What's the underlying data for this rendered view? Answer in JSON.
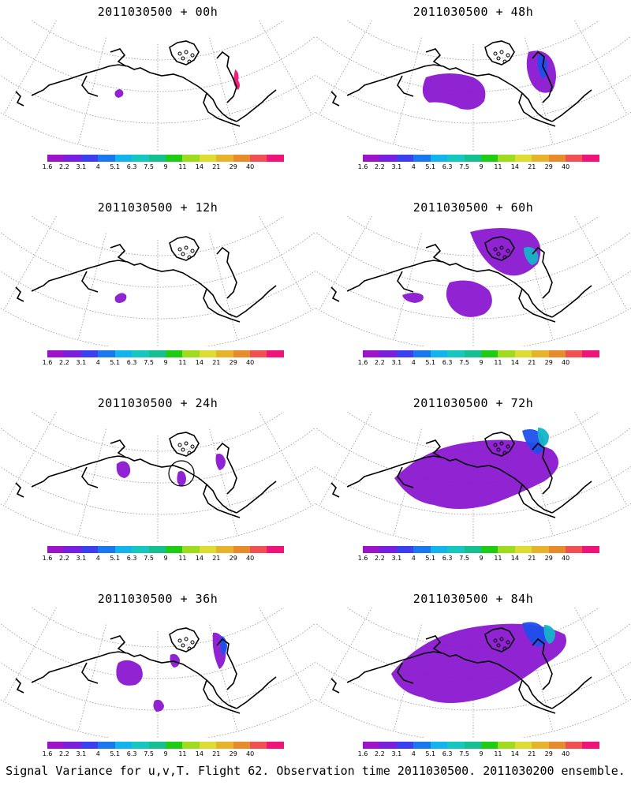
{
  "panels": [
    {
      "title": "2011030500 + 00h"
    },
    {
      "title": "2011030500 + 48h"
    },
    {
      "title": "2011030500 + 12h"
    },
    {
      "title": "2011030500 + 60h"
    },
    {
      "title": "2011030500 + 24h"
    },
    {
      "title": "2011030500 + 72h"
    },
    {
      "title": "2011030500 + 36h"
    },
    {
      "title": "2011030500 + 84h"
    }
  ],
  "colorbar": {
    "labels": [
      "1.6",
      "2.2",
      "3.1",
      "4",
      "5.1",
      "6.3",
      "7.5",
      "9",
      "11",
      "14",
      "21",
      "29",
      "40"
    ],
    "colors": [
      "#9a14c8",
      "#7a1ee0",
      "#3a40f0",
      "#1878f0",
      "#12b4ec",
      "#14c8c0",
      "#14c090",
      "#1ecc14",
      "#a0dc1e",
      "#dcdc32",
      "#e6b428",
      "#e68c28",
      "#f05050",
      "#f01478"
    ]
  },
  "caption": "Signal Variance for u,v,T. Flight 62. Observation time 2011030500. 2011030200 ensemble."
}
